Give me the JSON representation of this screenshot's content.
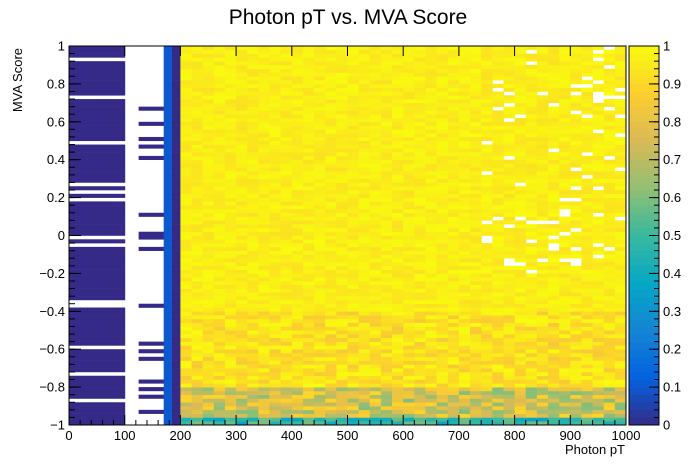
{
  "chart_data": {
    "type": "heatmap",
    "title": "Photon pT vs. MVA Score",
    "xlabel": "Photon pT",
    "ylabel": "MVA Score",
    "xlim": [
      0,
      1000
    ],
    "ylim": [
      -1,
      1
    ],
    "zlim": [
      0,
      1
    ],
    "x_ticks": [
      "0",
      "100",
      "200",
      "300",
      "400",
      "500",
      "600",
      "700",
      "800",
      "900",
      "1000"
    ],
    "y_ticks": [
      "−1",
      "−0.8",
      "−0.6",
      "−0.4",
      "−0.2",
      "0",
      "0.2",
      "0.4",
      "0.6",
      "0.8",
      "1"
    ],
    "z_ticks": [
      "0",
      "0.1",
      "0.2",
      "0.3",
      "0.4",
      "0.5",
      "0.6",
      "0.7",
      "0.8",
      "0.9",
      "1"
    ],
    "palette": [
      "#352a87",
      "#0363e1",
      "#1485d4",
      "#06a7c6",
      "#38b99e",
      "#92bf73",
      "#d9ba56",
      "#fcce2e",
      "#f9fb0e"
    ],
    "x_bins": [
      0,
      100,
      125,
      170,
      185,
      200,
      1000
    ],
    "regions": [
      {
        "x": [
          0,
          100
        ],
        "value": 0.0,
        "note_empty_fraction": 0.2
      },
      {
        "x": [
          100,
          125
        ],
        "value": null
      },
      {
        "x": [
          125,
          170
        ],
        "value": 0.0,
        "note_empty_fraction": 0.8
      },
      {
        "x": [
          170,
          185
        ],
        "value": 0.1
      },
      {
        "x": [
          185,
          200
        ],
        "value": 0.0
      },
      {
        "x": [
          200,
          1000
        ],
        "value": 1.0,
        "low_score_gradient": true
      }
    ]
  }
}
